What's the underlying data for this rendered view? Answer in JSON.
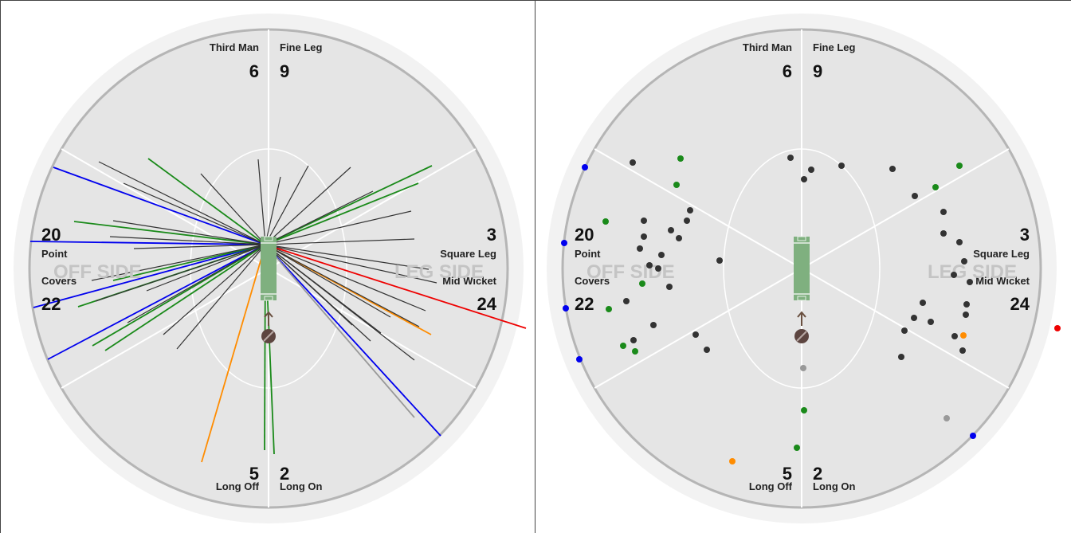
{
  "colors": {
    "outer_ring": "#f2f2f2",
    "field": "#e5e5e5",
    "boundary": "#b5b5b5",
    "zone_line": "#ffffff",
    "pitch": "#7fb07f",
    "crease": "#e8f0e8",
    "dot": "#333333",
    "one": "#1a8a1a",
    "four": "#0000ee",
    "six": "#ee0000",
    "two_three": "#ff8c00",
    "other": "#999999"
  },
  "zones": [
    {
      "key": "third_man",
      "name": "Third Man",
      "count": "6"
    },
    {
      "key": "fine_leg",
      "name": "Fine Leg",
      "count": "9"
    },
    {
      "key": "square_leg",
      "name": "Square Leg",
      "count": "3"
    },
    {
      "key": "mid_wicket",
      "name": "Mid Wicket",
      "count": "24"
    },
    {
      "key": "long_on",
      "name": "Long On",
      "count": "2"
    },
    {
      "key": "long_off",
      "name": "Long Off",
      "count": "5"
    },
    {
      "key": "covers",
      "name": "Covers",
      "count": "22"
    },
    {
      "key": "point",
      "name": "Point",
      "count": "20"
    }
  ],
  "sides": {
    "off": "OFF SIDE",
    "leg": "LEG SIDE"
  },
  "wagon_wheel": {
    "shots": [
      {
        "end": [
          67,
          210
        ],
        "c": "four"
      },
      {
        "end": [
          38,
          303
        ],
        "c": "four"
      },
      {
        "end": [
          42,
          386
        ],
        "c": "four"
      },
      {
        "end": [
          60,
          451
        ],
        "c": "four"
      },
      {
        "end": [
          553,
          547
        ],
        "c": "four"
      },
      {
        "end": [
          660,
          412
        ],
        "c": "six"
      },
      {
        "end": [
          253,
          580
        ],
        "c": "two_three"
      },
      {
        "end": [
          541,
          420
        ],
        "c": "two_three"
      },
      {
        "end": [
          520,
          524
        ],
        "c": "other"
      },
      {
        "end": [
          186,
          199
        ],
        "c": "one"
      },
      {
        "end": [
          93,
          278
        ],
        "c": "one"
      },
      {
        "end": [
          116,
          434
        ],
        "c": "one"
      },
      {
        "end": [
          132,
          440
        ],
        "c": "one"
      },
      {
        "end": [
          142,
          352
        ],
        "c": "one"
      },
      {
        "end": [
          98,
          385
        ],
        "c": "one"
      },
      {
        "end": [
          332,
          565
        ],
        "c": "one"
      },
      {
        "end": [
          344,
          570
        ],
        "c": "one"
      },
      {
        "end": [
          542,
          208
        ],
        "c": "one"
      },
      {
        "end": [
          525,
          230
        ],
        "c": "one"
      },
      {
        "end": [
          124,
          203
        ],
        "c": "dot"
      },
      {
        "end": [
          155,
          230
        ],
        "c": "dot"
      },
      {
        "end": [
          142,
          277
        ],
        "c": "dot"
      },
      {
        "end": [
          138,
          297
        ],
        "c": "dot"
      },
      {
        "end": [
          168,
          312
        ],
        "c": "dot"
      },
      {
        "end": [
          115,
          352
        ],
        "c": "dot"
      },
      {
        "end": [
          120,
          378
        ],
        "c": "dot"
      },
      {
        "end": [
          184,
          365
        ],
        "c": "dot"
      },
      {
        "end": [
          160,
          405
        ],
        "c": "dot"
      },
      {
        "end": [
          205,
          420
        ],
        "c": "dot"
      },
      {
        "end": [
          222,
          438
        ],
        "c": "dot"
      },
      {
        "end": [
          252,
          218
        ],
        "c": "dot"
      },
      {
        "end": [
          324,
          200
        ],
        "c": "dot"
      },
      {
        "end": [
          352,
          222
        ],
        "c": "dot"
      },
      {
        "end": [
          387,
          208
        ],
        "c": "dot"
      },
      {
        "end": [
          440,
          210
        ],
        "c": "dot"
      },
      {
        "end": [
          468,
          240
        ],
        "c": "dot"
      },
      {
        "end": [
          516,
          265
        ],
        "c": "dot"
      },
      {
        "end": [
          520,
          300
        ],
        "c": "dot"
      },
      {
        "end": [
          538,
          338
        ],
        "c": "dot"
      },
      {
        "end": [
          548,
          355
        ],
        "c": "dot"
      },
      {
        "end": [
          534,
          390
        ],
        "c": "dot"
      },
      {
        "end": [
          526,
          410
        ],
        "c": "dot"
      },
      {
        "end": [
          520,
          452
        ],
        "c": "dot"
      },
      {
        "end": [
          490,
          398
        ],
        "c": "dot"
      },
      {
        "end": [
          478,
          418
        ],
        "c": "dot"
      },
      {
        "end": [
          465,
          428
        ],
        "c": "dot"
      },
      {
        "end": [
          442,
          408
        ],
        "c": "dot"
      }
    ]
  },
  "pitch_map": {
    "balls": [
      {
        "p": [
          734,
          210
        ],
        "c": "four"
      },
      {
        "p": [
          708,
          305
        ],
        "c": "four"
      },
      {
        "p": [
          710,
          387
        ],
        "c": "four"
      },
      {
        "p": [
          727,
          451
        ],
        "c": "four"
      },
      {
        "p": [
          1221,
          547
        ],
        "c": "four"
      },
      {
        "p": [
          1327,
          412
        ],
        "c": "six"
      },
      {
        "p": [
          919,
          579
        ],
        "c": "two_three"
      },
      {
        "p": [
          1209,
          421
        ],
        "c": "two_three"
      },
      {
        "p": [
          1008,
          462
        ],
        "c": "other"
      },
      {
        "p": [
          1188,
          525
        ],
        "c": "other"
      },
      {
        "p": [
          854,
          199
        ],
        "c": "one"
      },
      {
        "p": [
          849,
          232
        ],
        "c": "one"
      },
      {
        "p": [
          760,
          278
        ],
        "c": "one"
      },
      {
        "p": [
          806,
          356
        ],
        "c": "one"
      },
      {
        "p": [
          764,
          388
        ],
        "c": "one"
      },
      {
        "p": [
          782,
          434
        ],
        "c": "one"
      },
      {
        "p": [
          797,
          441
        ],
        "c": "one"
      },
      {
        "p": [
          1009,
          515
        ],
        "c": "one"
      },
      {
        "p": [
          1000,
          562
        ],
        "c": "one"
      },
      {
        "p": [
          1204,
          208
        ],
        "c": "one"
      },
      {
        "p": [
          1174,
          235
        ],
        "c": "one"
      },
      {
        "p": [
          794,
          204
        ],
        "c": "dot"
      },
      {
        "p": [
          866,
          264
        ],
        "c": "dot"
      },
      {
        "p": [
          842,
          289
        ],
        "c": "dot"
      },
      {
        "p": [
          862,
          277
        ],
        "c": "dot"
      },
      {
        "p": [
          808,
          277
        ],
        "c": "dot"
      },
      {
        "p": [
          852,
          299
        ],
        "c": "dot"
      },
      {
        "p": [
          808,
          297
        ],
        "c": "dot"
      },
      {
        "p": [
          803,
          312
        ],
        "c": "dot"
      },
      {
        "p": [
          830,
          320
        ],
        "c": "dot"
      },
      {
        "p": [
          815,
          333
        ],
        "c": "dot"
      },
      {
        "p": [
          826,
          337
        ],
        "c": "dot"
      },
      {
        "p": [
          903,
          327
        ],
        "c": "dot"
      },
      {
        "p": [
          840,
          360
        ],
        "c": "dot"
      },
      {
        "p": [
          786,
          378
        ],
        "c": "dot"
      },
      {
        "p": [
          820,
          408
        ],
        "c": "dot"
      },
      {
        "p": [
          795,
          427
        ],
        "c": "dot"
      },
      {
        "p": [
          873,
          420
        ],
        "c": "dot"
      },
      {
        "p": [
          887,
          439
        ],
        "c": "dot"
      },
      {
        "p": [
          992,
          198
        ],
        "c": "dot"
      },
      {
        "p": [
          1009,
          225
        ],
        "c": "dot"
      },
      {
        "p": [
          1018,
          213
        ],
        "c": "dot"
      },
      {
        "p": [
          1056,
          208
        ],
        "c": "dot"
      },
      {
        "p": [
          1120,
          212
        ],
        "c": "dot"
      },
      {
        "p": [
          1148,
          246
        ],
        "c": "dot"
      },
      {
        "p": [
          1184,
          266
        ],
        "c": "dot"
      },
      {
        "p": [
          1184,
          293
        ],
        "c": "dot"
      },
      {
        "p": [
          1204,
          304
        ],
        "c": "dot"
      },
      {
        "p": [
          1210,
          328
        ],
        "c": "dot"
      },
      {
        "p": [
          1197,
          345
        ],
        "c": "dot"
      },
      {
        "p": [
          1217,
          354
        ],
        "c": "dot"
      },
      {
        "p": [
          1213,
          382
        ],
        "c": "dot"
      },
      {
        "p": [
          1212,
          395
        ],
        "c": "dot"
      },
      {
        "p": [
          1158,
          380
        ],
        "c": "dot"
      },
      {
        "p": [
          1147,
          399
        ],
        "c": "dot"
      },
      {
        "p": [
          1168,
          404
        ],
        "c": "dot"
      },
      {
        "p": [
          1135,
          415
        ],
        "c": "dot"
      },
      {
        "p": [
          1198,
          422
        ],
        "c": "dot"
      },
      {
        "p": [
          1208,
          440
        ],
        "c": "dot"
      },
      {
        "p": [
          1131,
          448
        ],
        "c": "dot"
      }
    ]
  }
}
